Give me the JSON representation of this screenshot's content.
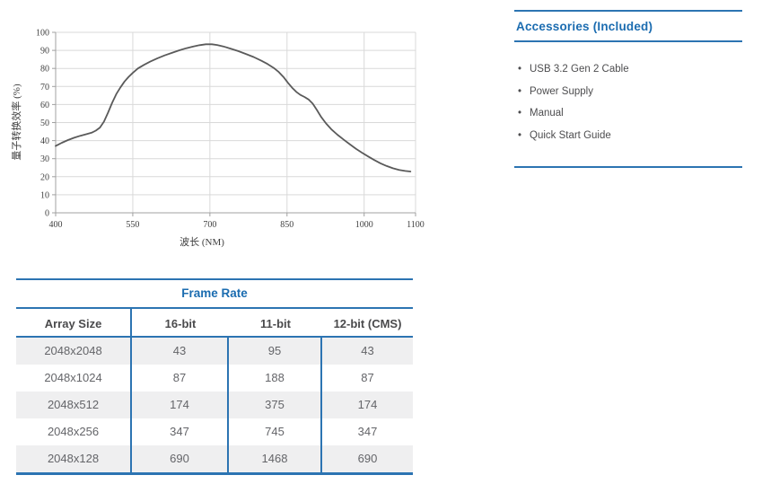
{
  "colors": {
    "brand_blue_text": "#1b6cb0",
    "brand_blue_rule": "#2c74b2",
    "curve_gray": "#5a5a5a",
    "gridline_gray": "#d9d9d9",
    "axis_gray": "#a0a0a0",
    "table_header_text": "#4a4a4c",
    "table_body_text": "#646569",
    "row_alt_bg": "#efeff0",
    "bullet_text": "#4d4d4f"
  },
  "chart_data": {
    "type": "line",
    "title": "",
    "xlabel": "波长 (NM)",
    "ylabel": "量子转换效率 (%)",
    "xlim": [
      400,
      1100
    ],
    "ylim": [
      0,
      100
    ],
    "x_ticks": [
      400,
      550,
      700,
      850,
      1000,
      1100
    ],
    "y_ticks": [
      0,
      10,
      20,
      30,
      40,
      50,
      60,
      70,
      80,
      90,
      100
    ],
    "grid": true,
    "legend": "none",
    "series": [
      {
        "name": "quantum-efficiency",
        "color": "#5a5a5a",
        "points": [
          [
            400,
            37
          ],
          [
            412,
            38.8
          ],
          [
            424,
            40.3
          ],
          [
            436,
            41.6
          ],
          [
            448,
            42.7
          ],
          [
            460,
            43.6
          ],
          [
            470,
            44.4
          ],
          [
            478,
            45.5
          ],
          [
            486,
            47.2
          ],
          [
            494,
            50.5
          ],
          [
            502,
            55.5
          ],
          [
            510,
            61
          ],
          [
            518,
            65.8
          ],
          [
            526,
            69.5
          ],
          [
            534,
            72.8
          ],
          [
            542,
            75.3
          ],
          [
            550,
            77.5
          ],
          [
            560,
            80
          ],
          [
            572,
            82
          ],
          [
            584,
            83.8
          ],
          [
            598,
            85.6
          ],
          [
            612,
            87.2
          ],
          [
            626,
            88.6
          ],
          [
            640,
            90
          ],
          [
            654,
            91.2
          ],
          [
            668,
            92.2
          ],
          [
            680,
            92.9
          ],
          [
            692,
            93.4
          ],
          [
            704,
            93.4
          ],
          [
            714,
            93
          ],
          [
            726,
            92.2
          ],
          [
            740,
            91
          ],
          [
            755,
            89.6
          ],
          [
            770,
            88
          ],
          [
            785,
            86.3
          ],
          [
            800,
            84.3
          ],
          [
            812,
            82.5
          ],
          [
            824,
            80.3
          ],
          [
            834,
            78
          ],
          [
            844,
            75
          ],
          [
            852,
            72
          ],
          [
            860,
            69.3
          ],
          [
            868,
            67
          ],
          [
            876,
            65.3
          ],
          [
            884,
            64.2
          ],
          [
            892,
            62.8
          ],
          [
            900,
            60.5
          ],
          [
            908,
            57
          ],
          [
            916,
            53.3
          ],
          [
            926,
            49.5
          ],
          [
            936,
            46.3
          ],
          [
            948,
            43.3
          ],
          [
            960,
            40.6
          ],
          [
            972,
            38
          ],
          [
            984,
            35.5
          ],
          [
            996,
            33.3
          ],
          [
            1008,
            31.2
          ],
          [
            1020,
            29.2
          ],
          [
            1032,
            27.4
          ],
          [
            1044,
            25.9
          ],
          [
            1056,
            24.7
          ],
          [
            1068,
            23.8
          ],
          [
            1080,
            23.2
          ],
          [
            1090,
            22.9
          ]
        ]
      }
    ]
  },
  "accessories": {
    "title": "Accessories (Included)",
    "bullet_glyph": "•",
    "items": [
      "USB 3.2 Gen 2 Cable",
      "Power Supply",
      "Manual",
      "Quick Start Guide"
    ]
  },
  "frame_rate_table": {
    "title": "Frame Rate",
    "columns": [
      "Array Size",
      "16-bit",
      "11-bit",
      "12-bit (CMS)"
    ],
    "rows": [
      [
        "2048x2048",
        "43",
        "95",
        "43"
      ],
      [
        "2048x1024",
        "87",
        "188",
        "87"
      ],
      [
        "2048x512",
        "174",
        "375",
        "174"
      ],
      [
        "2048x256",
        "347",
        "745",
        "347"
      ],
      [
        "2048x128",
        "690",
        "1468",
        "690"
      ]
    ]
  }
}
